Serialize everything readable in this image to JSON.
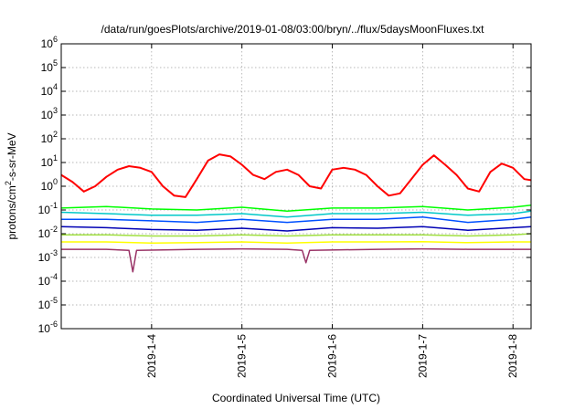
{
  "chart_data": {
    "type": "line",
    "title": "/data/run/goesPlots/archive/2019-01-08/03:00/bryn/../flux/5daysMoonFluxes.txt",
    "xlabel": "Coordinated Universal Time (UTC)",
    "ylabel_parts": [
      "protons/cm",
      "2",
      "-s-sr-MeV"
    ],
    "y_scale": "log",
    "ylim": [
      1e-06,
      1000000.0
    ],
    "y_ticks": [
      {
        "base": "10",
        "exp": "6",
        "value": 1000000.0
      },
      {
        "base": "10",
        "exp": "5",
        "value": 100000.0
      },
      {
        "base": "10",
        "exp": "4",
        "value": 10000.0
      },
      {
        "base": "10",
        "exp": "3",
        "value": 1000.0
      },
      {
        "base": "10",
        "exp": "2",
        "value": 100.0
      },
      {
        "base": "10",
        "exp": "1",
        "value": 10.0
      },
      {
        "base": "10",
        "exp": "0",
        "value": 1.0
      },
      {
        "base": "10",
        "exp": "-1",
        "value": 0.1
      },
      {
        "base": "10",
        "exp": "-2",
        "value": 0.01
      },
      {
        "base": "10",
        "exp": "-3",
        "value": 0.001
      },
      {
        "base": "10",
        "exp": "-4",
        "value": 0.0001
      },
      {
        "base": "10",
        "exp": "-5",
        "value": 1e-05
      },
      {
        "base": "10",
        "exp": "-6",
        "value": 1e-06
      }
    ],
    "x_range_days": [
      "2019-01-03 00:00",
      "2019-01-08 04:48"
    ],
    "x_ticks": [
      "2019-1-4",
      "2019-1-5",
      "2019-1-6",
      "2019-1-7",
      "2019-1-8"
    ],
    "grid": true,
    "series": [
      {
        "color": "#ff0000",
        "x": [
          "2019-01-03 00:00",
          "2019-01-03 03:00",
          "2019-01-03 06:00",
          "2019-01-03 09:00",
          "2019-01-03 12:00",
          "2019-01-03 15:00",
          "2019-01-03 18:00",
          "2019-01-03 21:00",
          "2019-01-04 00:00",
          "2019-01-04 03:00",
          "2019-01-04 06:00",
          "2019-01-04 09:00",
          "2019-01-04 12:00",
          "2019-01-04 15:00",
          "2019-01-04 18:00",
          "2019-01-04 21:00",
          "2019-01-05 00:00",
          "2019-01-05 03:00",
          "2019-01-05 06:00",
          "2019-01-05 09:00",
          "2019-01-05 12:00",
          "2019-01-05 15:00",
          "2019-01-05 18:00",
          "2019-01-05 21:00",
          "2019-01-06 00:00",
          "2019-01-06 03:00",
          "2019-01-06 06:00",
          "2019-01-06 09:00",
          "2019-01-06 12:00",
          "2019-01-06 15:00",
          "2019-01-06 18:00",
          "2019-01-06 21:00",
          "2019-01-07 00:00",
          "2019-01-07 03:00",
          "2019-01-07 06:00",
          "2019-01-07 09:00",
          "2019-01-07 12:00",
          "2019-01-07 15:00",
          "2019-01-07 18:00",
          "2019-01-07 21:00",
          "2019-01-08 00:00",
          "2019-01-08 03:00",
          "2019-01-08 04:48"
        ],
        "values": [
          3,
          1.5,
          0.6,
          1.0,
          2.5,
          5,
          7,
          6,
          4,
          1.0,
          0.4,
          0.35,
          2,
          12,
          22,
          18,
          8,
          3,
          2,
          4,
          5,
          3,
          1,
          0.8,
          5,
          6,
          5,
          3,
          1,
          0.4,
          0.5,
          2,
          8,
          20,
          8,
          3,
          0.8,
          0.6,
          4,
          9,
          6,
          2,
          1.8
        ]
      },
      {
        "color": "#00ff00",
        "x": [
          "2019-01-03 00:00",
          "2019-01-03 12:00",
          "2019-01-04 00:00",
          "2019-01-04 12:00",
          "2019-01-05 00:00",
          "2019-01-05 12:00",
          "2019-01-06 00:00",
          "2019-01-06 12:00",
          "2019-01-07 00:00",
          "2019-01-07 12:00",
          "2019-01-08 00:00",
          "2019-01-08 04:48"
        ],
        "values": [
          0.12,
          0.14,
          0.11,
          0.1,
          0.13,
          0.09,
          0.12,
          0.12,
          0.14,
          0.1,
          0.13,
          0.16
        ]
      },
      {
        "color": "#00c8c8",
        "x": [
          "2019-01-03 00:00",
          "2019-01-03 12:00",
          "2019-01-04 00:00",
          "2019-01-04 12:00",
          "2019-01-05 00:00",
          "2019-01-05 12:00",
          "2019-01-06 00:00",
          "2019-01-06 12:00",
          "2019-01-07 00:00",
          "2019-01-07 12:00",
          "2019-01-08 00:00",
          "2019-01-08 04:48"
        ],
        "values": [
          0.08,
          0.07,
          0.06,
          0.06,
          0.07,
          0.05,
          0.07,
          0.07,
          0.08,
          0.06,
          0.07,
          0.09
        ]
      },
      {
        "color": "#0050ff",
        "x": [
          "2019-01-03 00:00",
          "2019-01-03 12:00",
          "2019-01-04 00:00",
          "2019-01-04 12:00",
          "2019-01-05 00:00",
          "2019-01-05 12:00",
          "2019-01-06 00:00",
          "2019-01-06 12:00",
          "2019-01-07 00:00",
          "2019-01-07 12:00",
          "2019-01-08 00:00",
          "2019-01-08 04:48"
        ],
        "values": [
          0.04,
          0.04,
          0.035,
          0.03,
          0.04,
          0.03,
          0.04,
          0.04,
          0.05,
          0.03,
          0.04,
          0.05
        ]
      },
      {
        "color": "#0000b4",
        "x": [
          "2019-01-03 00:00",
          "2019-01-03 12:00",
          "2019-01-04 00:00",
          "2019-01-04 12:00",
          "2019-01-05 00:00",
          "2019-01-05 12:00",
          "2019-01-06 00:00",
          "2019-01-06 12:00",
          "2019-01-07 00:00",
          "2019-01-07 12:00",
          "2019-01-08 00:00",
          "2019-01-08 04:48"
        ],
        "values": [
          0.02,
          0.018,
          0.015,
          0.014,
          0.017,
          0.013,
          0.018,
          0.017,
          0.02,
          0.014,
          0.018,
          0.02
        ]
      },
      {
        "color": "#a0e040",
        "x": [
          "2019-01-03 00:00",
          "2019-01-03 12:00",
          "2019-01-04 00:00",
          "2019-01-04 12:00",
          "2019-01-05 00:00",
          "2019-01-05 12:00",
          "2019-01-06 00:00",
          "2019-01-06 12:00",
          "2019-01-07 00:00",
          "2019-01-07 12:00",
          "2019-01-08 00:00",
          "2019-01-08 04:48"
        ],
        "values": [
          0.009,
          0.009,
          0.008,
          0.008,
          0.009,
          0.008,
          0.009,
          0.009,
          0.009,
          0.008,
          0.009,
          0.01
        ]
      },
      {
        "color": "#ffff00",
        "x": [
          "2019-01-03 00:00",
          "2019-01-03 12:00",
          "2019-01-04 00:00",
          "2019-01-04 12:00",
          "2019-01-05 00:00",
          "2019-01-05 12:00",
          "2019-01-06 00:00",
          "2019-01-06 12:00",
          "2019-01-07 00:00",
          "2019-01-07 12:00",
          "2019-01-08 00:00",
          "2019-01-08 04:48"
        ],
        "values": [
          0.0045,
          0.0045,
          0.004,
          0.0042,
          0.0045,
          0.004,
          0.0045,
          0.0045,
          0.0046,
          0.0042,
          0.0045,
          0.0045
        ]
      },
      {
        "color": "#993366",
        "x": [
          "2019-01-03 00:00",
          "2019-01-03 12:00",
          "2019-01-03 18:00",
          "2019-01-03 19:00",
          "2019-01-03 20:00",
          "2019-01-04 12:00",
          "2019-01-05 00:00",
          "2019-01-05 12:00",
          "2019-01-05 16:00",
          "2019-01-05 17:00",
          "2019-01-05 18:00",
          "2019-01-06 12:00",
          "2019-01-07 00:00",
          "2019-01-07 12:00",
          "2019-01-08 00:00",
          "2019-01-08 04:48"
        ],
        "values": [
          0.0022,
          0.0022,
          0.002,
          0.00025,
          0.002,
          0.0022,
          0.0023,
          0.0022,
          0.002,
          0.0006,
          0.002,
          0.0022,
          0.0023,
          0.0022,
          0.0022,
          0.0022
        ]
      }
    ]
  }
}
